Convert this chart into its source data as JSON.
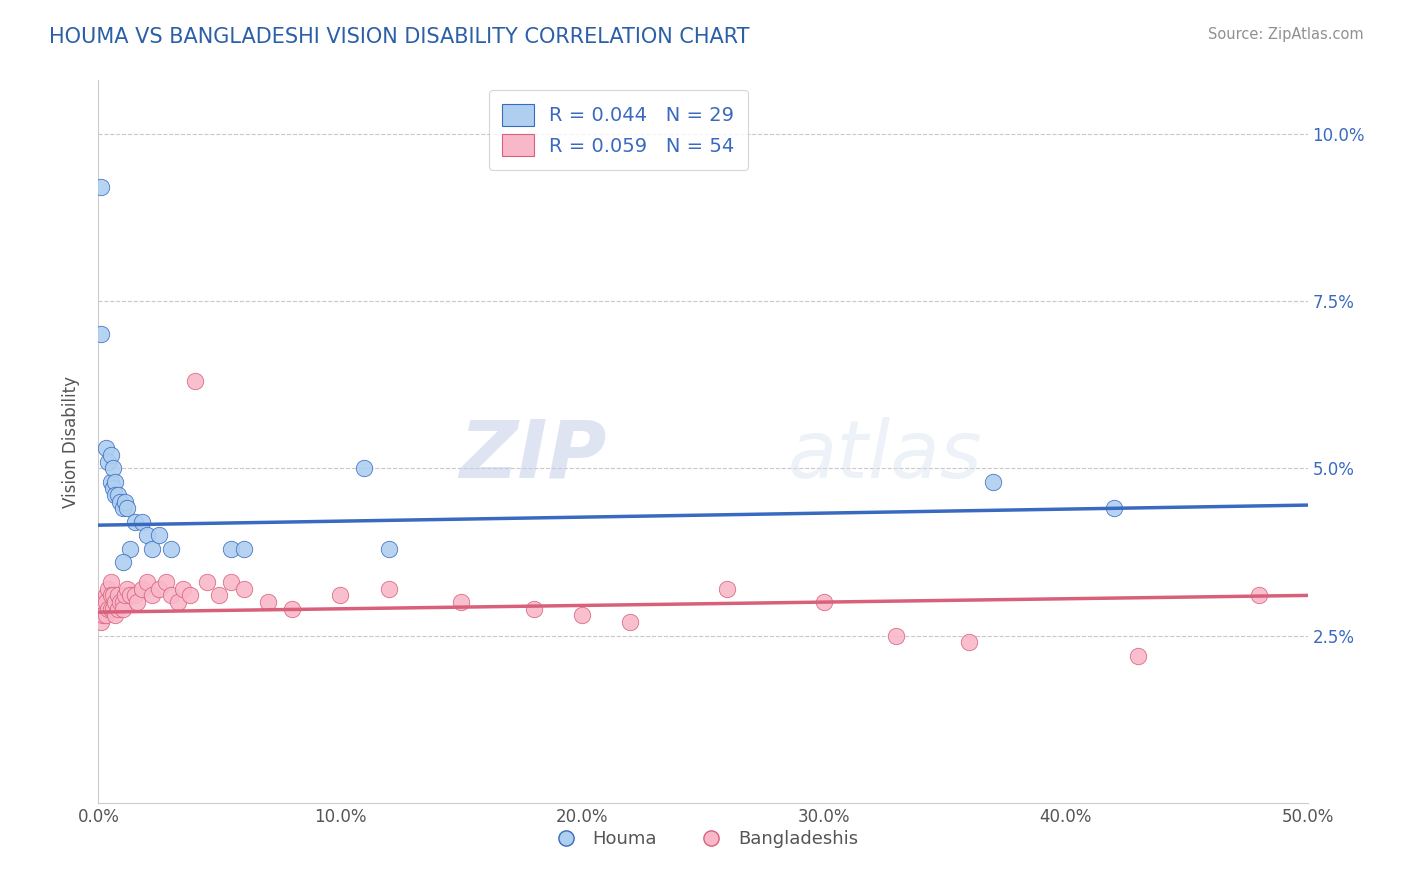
{
  "title": "HOUMA VS BANGLADESHI VISION DISABILITY CORRELATION CHART",
  "source": "Source: ZipAtlas.com",
  "ylabel": "Vision Disability",
  "xmin": 0.0,
  "xmax": 0.5,
  "ymin": 0.0,
  "ymax": 0.108,
  "houma_R": "0.044",
  "houma_N": "29",
  "bangladeshi_R": "0.059",
  "bangladeshi_N": "54",
  "houma_color": "#aecff0",
  "bangladeshi_color": "#f9b8ca",
  "houma_line_color": "#3a6abf",
  "bangladeshi_line_color": "#d9607a",
  "background_color": "#ffffff",
  "grid_color": "#c8c8c8",
  "watermark_zip": "ZIP",
  "watermark_atlas": "atlas",
  "houma_x": [
    0.001,
    0.001,
    0.003,
    0.004,
    0.005,
    0.005,
    0.006,
    0.006,
    0.007,
    0.007,
    0.008,
    0.009,
    0.01,
    0.011,
    0.012,
    0.013,
    0.015,
    0.018,
    0.02,
    0.022,
    0.025,
    0.03,
    0.055,
    0.06,
    0.11,
    0.12,
    0.37,
    0.42,
    0.01
  ],
  "houma_y": [
    0.092,
    0.07,
    0.053,
    0.051,
    0.052,
    0.048,
    0.05,
    0.047,
    0.048,
    0.046,
    0.046,
    0.045,
    0.044,
    0.045,
    0.044,
    0.038,
    0.042,
    0.042,
    0.04,
    0.038,
    0.04,
    0.038,
    0.038,
    0.038,
    0.05,
    0.038,
    0.048,
    0.044,
    0.036
  ],
  "bangladeshi_x": [
    0.001,
    0.001,
    0.002,
    0.002,
    0.003,
    0.003,
    0.003,
    0.004,
    0.004,
    0.005,
    0.005,
    0.005,
    0.006,
    0.006,
    0.007,
    0.007,
    0.008,
    0.008,
    0.009,
    0.01,
    0.01,
    0.011,
    0.012,
    0.013,
    0.015,
    0.016,
    0.018,
    0.02,
    0.022,
    0.025,
    0.028,
    0.03,
    0.033,
    0.035,
    0.038,
    0.04,
    0.045,
    0.05,
    0.055,
    0.06,
    0.07,
    0.08,
    0.1,
    0.12,
    0.15,
    0.18,
    0.2,
    0.22,
    0.26,
    0.3,
    0.33,
    0.36,
    0.43,
    0.48
  ],
  "bangladeshi_y": [
    0.028,
    0.027,
    0.03,
    0.028,
    0.031,
    0.03,
    0.028,
    0.032,
    0.029,
    0.033,
    0.031,
    0.029,
    0.031,
    0.029,
    0.03,
    0.028,
    0.031,
    0.029,
    0.03,
    0.03,
    0.029,
    0.031,
    0.032,
    0.031,
    0.031,
    0.03,
    0.032,
    0.033,
    0.031,
    0.032,
    0.033,
    0.031,
    0.03,
    0.032,
    0.031,
    0.063,
    0.033,
    0.031,
    0.033,
    0.032,
    0.03,
    0.029,
    0.031,
    0.032,
    0.03,
    0.029,
    0.028,
    0.027,
    0.032,
    0.03,
    0.025,
    0.024,
    0.022,
    0.031
  ],
  "houma_line_x": [
    0.0,
    0.5
  ],
  "houma_line_y": [
    0.0415,
    0.0445
  ],
  "bangladeshi_line_x": [
    0.0,
    0.5
  ],
  "bangladeshi_line_y": [
    0.0285,
    0.031
  ]
}
